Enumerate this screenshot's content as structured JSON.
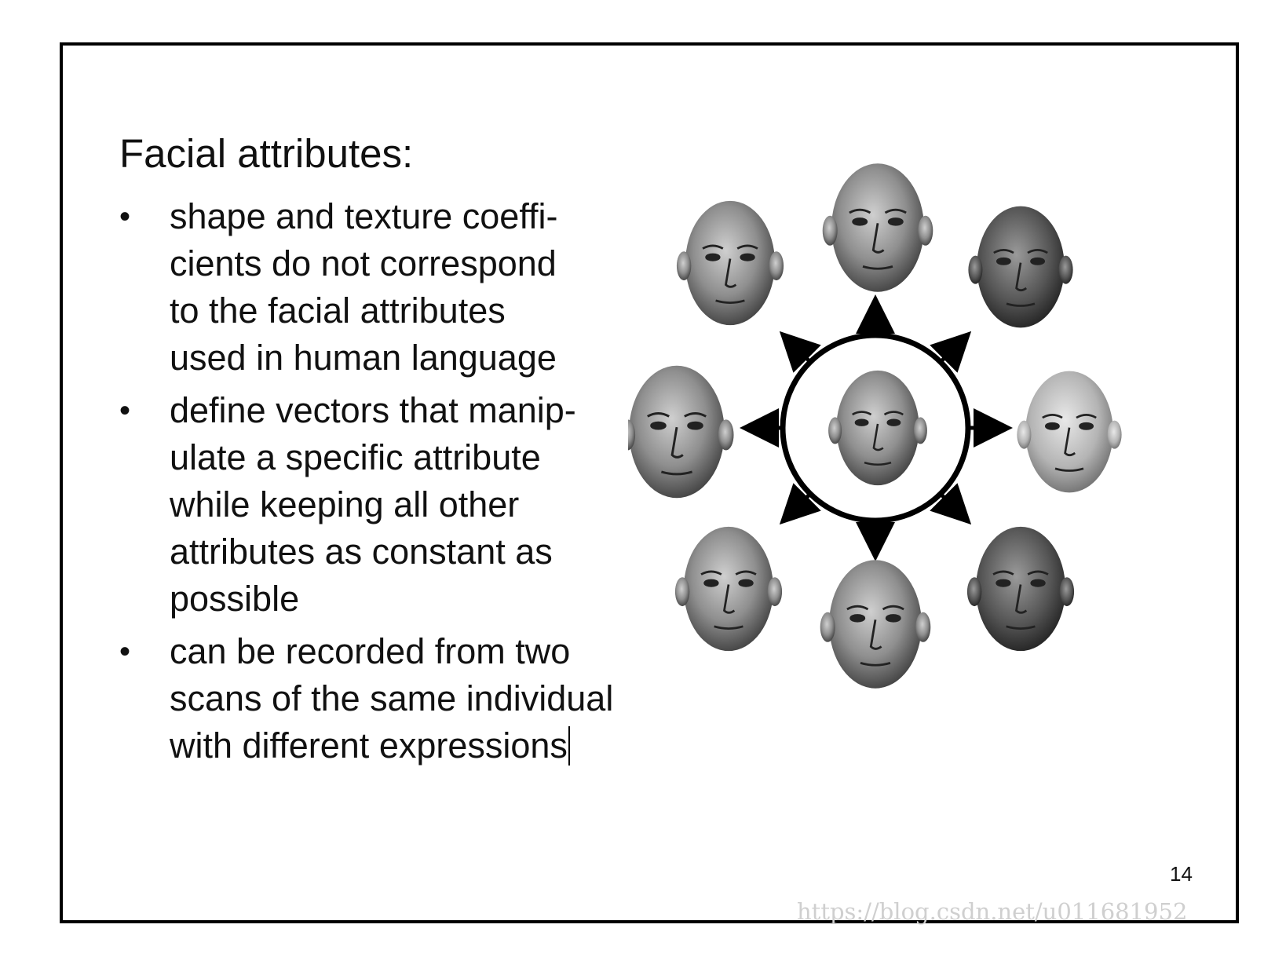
{
  "slide": {
    "title": "Facial attributes:",
    "bullets": [
      {
        "marker": "•",
        "lines": [
          "shape and texture coeffi-",
          "cients do not correspond",
          "to the facial attributes",
          "used in human language"
        ]
      },
      {
        "marker": "•",
        "lines": [
          "define vectors that manip-",
          "ulate a specific attribute",
          "while keeping all other",
          "attributes as constant as",
          "possible"
        ]
      },
      {
        "marker": "•",
        "lines": [
          "can be recorded from two",
          "scans of the same individual",
          "with different expressions"
        ]
      }
    ],
    "page_number": "14",
    "watermark": "https://blog.csdn.net/u011681952"
  },
  "figure": {
    "center": "face-center",
    "surrounding_faces": [
      "face-top",
      "face-top-right",
      "face-right",
      "face-bottom-right",
      "face-bottom",
      "face-bottom-left",
      "face-left",
      "face-top-left"
    ],
    "arrows": 8
  }
}
